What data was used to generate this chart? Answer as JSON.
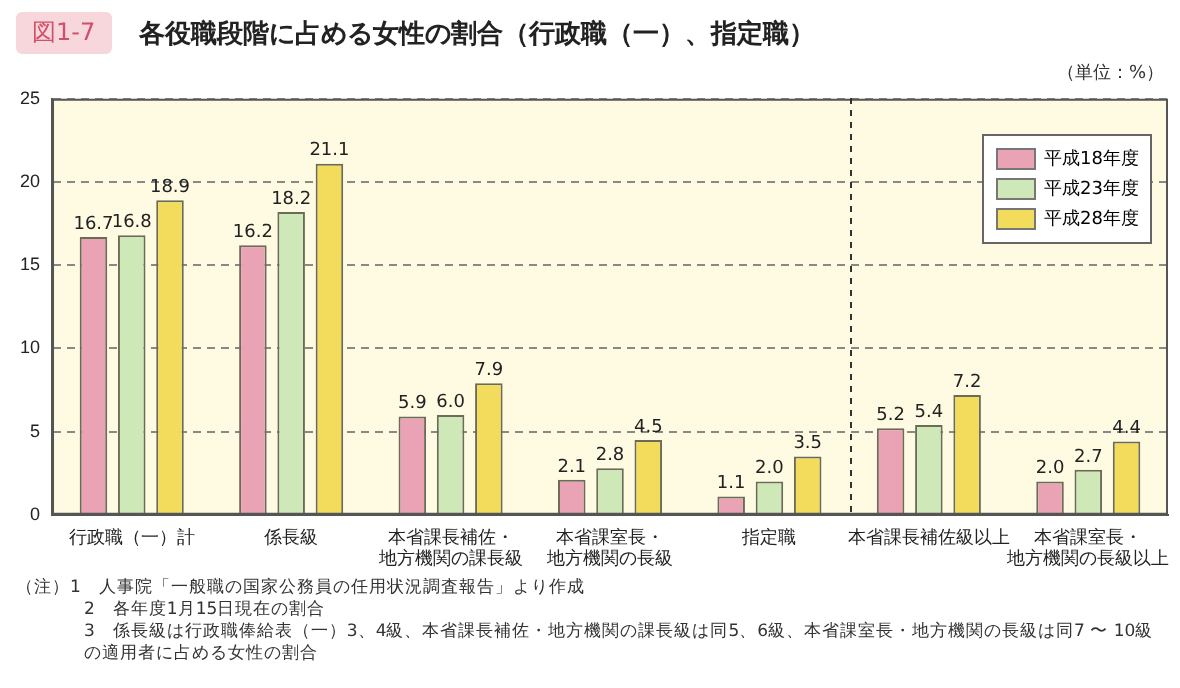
{
  "chart_data": {
    "type": "bar",
    "title": "各役職段階に占める女性の割合（行政職（一）、指定職）",
    "categories": [
      "行政職（一）計",
      "係長級",
      "本省課長補佐・地方機関の課長級",
      "本省課室長・地方機関の長級",
      "指定職",
      "本省課長補佐級以上",
      "本省課室長・地方機関の長級以上"
    ],
    "series": [
      {
        "name": "平成18年度",
        "color": "#e9a3b4",
        "values": [
          16.7,
          16.2,
          5.9,
          2.1,
          1.1,
          5.2,
          2.0
        ],
        "value_labels": [
          "16.7",
          "16.2",
          "5.9",
          "2.1",
          "1.1",
          "5.2",
          "2.0"
        ]
      },
      {
        "name": "平成23年度",
        "color": "#cfe8b8",
        "values": [
          16.8,
          18.2,
          6.0,
          2.8,
          2.0,
          5.4,
          2.7
        ],
        "value_labels": [
          "16.8",
          "18.2",
          "6.0",
          "2.8",
          "2.0",
          "5.4",
          "2.7"
        ]
      },
      {
        "name": "平成28年度",
        "color": "#f3dc5c",
        "values": [
          18.9,
          21.1,
          7.9,
          4.5,
          3.5,
          7.2,
          4.4
        ],
        "value_labels": [
          "18.9",
          "21.1",
          "7.9",
          "4.5",
          "3.5",
          "7.2",
          "4.4"
        ]
      }
    ],
    "ylim": [
      0,
      25
    ],
    "yticks": [
      0,
      5,
      10,
      15,
      20,
      25
    ],
    "grid": "y",
    "legend": "top right",
    "annotations": [
      "図1-7",
      "（単位：%）",
      "（注）1　人事院「一般職の国家公務員の任用状況調査報告」より作成",
      "2　各年度1月15日現在の割合",
      "3　係長級は行政職俸給表（一）3、4級、本省課長補佐・地方機関の課長級は同5、6級、本省課室長・地方機関の長級は同7 〜 10級の適用者に占める女性の割合"
    ]
  }
}
